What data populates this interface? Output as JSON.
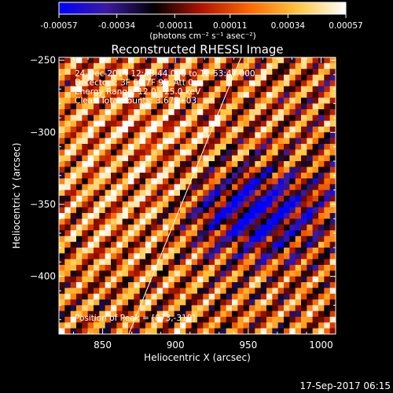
{
  "colorbar": {
    "ticks": [
      "-0.00057",
      "-0.00034",
      "-0.00011",
      "0.00011",
      "0.00034",
      "0.00057"
    ],
    "tick_values": [
      -0.00057,
      -0.00034,
      -0.00011,
      0.00011,
      0.00034,
      0.00057
    ],
    "range": [
      -0.00057,
      0.00057
    ],
    "unit_label": "(photons cm⁻² s⁻¹ asec⁻²)",
    "colors": [
      "#0000ff",
      "#3b1aa0",
      "#000000",
      "#b31400",
      "#ff6a00",
      "#ffc640",
      "#ffffff"
    ]
  },
  "chart_data": {
    "type": "heatmap",
    "title": "Reconstructed RHESSI Image",
    "xlabel": "Heliocentric X (arcsec)",
    "ylabel": "Heliocentric Y (arcsec)",
    "xlim": [
      820,
      1010
    ],
    "ylim": [
      -440,
      -248
    ],
    "xticks": [
      850,
      900,
      950,
      1000
    ],
    "yticks": [
      -250,
      -300,
      -350,
      -400
    ],
    "annotations": [
      "24-Dec-2014 12:43:44.000 to 12:53:44.000",
      "Detectors: 3F 6F 7F 9F, Att 0",
      "Energy Range: 12.0 - 25.0 keV",
      "Clean     Total counts: 3.67E+03"
    ],
    "peak_label": "Position of Peak = [873,-318]",
    "peak": [
      873,
      -318
    ],
    "limb_line": [
      [
        868,
        -440
      ],
      [
        945,
        -248
      ]
    ],
    "grid_cols": 48,
    "grid_rows": 48,
    "stripe_angle_deg": 45,
    "stripe_period_arcsec": 14,
    "negative_region_center": [
      955,
      -355
    ]
  },
  "footer": {
    "timestamp": "17-Sep-2017 06:15"
  }
}
